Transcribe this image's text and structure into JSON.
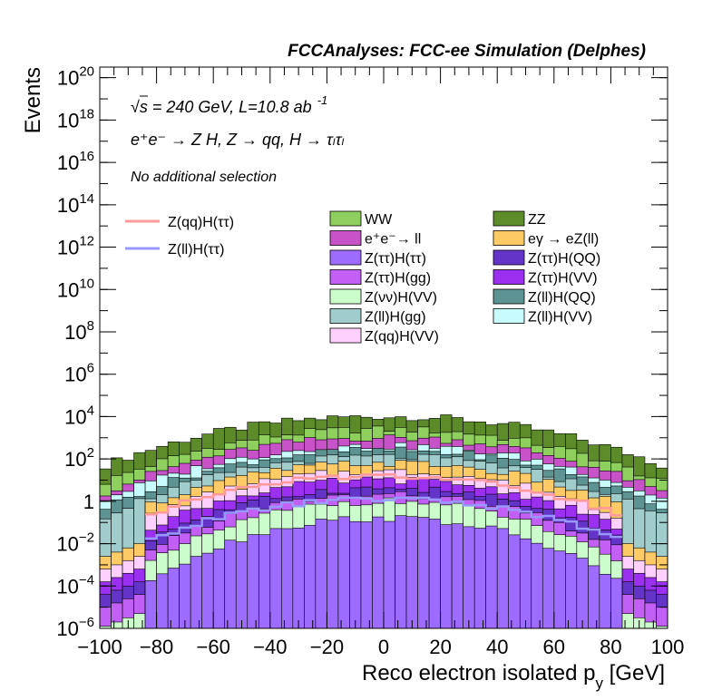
{
  "chart_data": {
    "type": "histogram-stack",
    "title": "FCCAnalyses: FCC-ee Simulation (Delphes)",
    "xlabel": "Reco electron isolated p",
    "xlabel_sub": "y",
    "xlabel_unit": "[GeV]",
    "ylabel": "Events",
    "xlim": [
      -100,
      100
    ],
    "ylim_log10": [
      -6,
      20.5
    ],
    "yscale": "log",
    "x_ticks": [
      "−100",
      "−80",
      "−60",
      "−40",
      "−20",
      "0",
      "20",
      "40",
      "60",
      "80",
      "100"
    ],
    "x_tick_values": [
      -100,
      -80,
      -60,
      -40,
      -20,
      0,
      20,
      40,
      60,
      80,
      100
    ],
    "y_ticks": [
      {
        "exp": -6,
        "base": "10",
        "sup": "−6"
      },
      {
        "exp": -4,
        "base": "10",
        "sup": "−4"
      },
      {
        "exp": -2,
        "base": "10",
        "sup": "−2"
      },
      {
        "exp": 0,
        "base": "1",
        "sup": ""
      },
      {
        "exp": 2,
        "base": "10",
        "sup": "2"
      },
      {
        "exp": 4,
        "base": "10",
        "sup": "4"
      },
      {
        "exp": 6,
        "base": "10",
        "sup": "6"
      },
      {
        "exp": 8,
        "base": "10",
        "sup": "8"
      },
      {
        "exp": 10,
        "base": "10",
        "sup": "10"
      },
      {
        "exp": 12,
        "base": "10",
        "sup": "12"
      },
      {
        "exp": 14,
        "base": "10",
        "sup": "14"
      },
      {
        "exp": 16,
        "base": "10",
        "sup": "16"
      },
      {
        "exp": 18,
        "base": "10",
        "sup": "18"
      },
      {
        "exp": 20,
        "base": "10",
        "sup": "20"
      }
    ],
    "annotations": {
      "energy": "√s = 240 GeV, L=10.8 ab",
      "energy_sup": "-1",
      "process": "e⁺e⁻ → Z H, Z → qq, H → τₗτₗ",
      "selection": "No additional selection"
    },
    "bins": {
      "start": -100,
      "stop": 100,
      "width": 4
    },
    "stack_layers": [
      {
        "name": "ZZ",
        "color": "#5d8b2a",
        "shape": "dome",
        "center_log10": 4.0,
        "edge_log10": 1.6
      },
      {
        "name": "WW",
        "color": "#8fcf5e",
        "shape": "dome",
        "center_log10": 3.4,
        "edge_log10": 0.8
      },
      {
        "name": "e⁺e⁻→ ll",
        "color": "#c852c8",
        "shape": "dome",
        "center_log10": 3.0,
        "edge_log10": 0.3
      },
      {
        "name": "Z(ll)H(VV)",
        "color": "#c8fbfb",
        "shape": "dome",
        "center_log10": 2.6,
        "edge_log10": 0.0
      },
      {
        "name": "Z(ll)H(QQ)",
        "color": "#5d9393",
        "shape": "dome",
        "center_log10": 2.4,
        "edge_log10": -0.4
      },
      {
        "name": "Z(ll)H(gg)",
        "color": "#a1cccc",
        "shape": "dome",
        "center_log10": 2.1,
        "edge_log10": -0.8
      },
      {
        "name": "eγ → eZ(ll)",
        "color": "#fdca66",
        "shape": "dome",
        "center_log10": 1.8,
        "edge_log10": -1.2
      },
      {
        "name": "Z(qq)H(VV)",
        "color": "#fdd0fd",
        "shape": "dome",
        "center_log10": 1.4,
        "edge_log10": -1.8
      },
      {
        "name": "Z(ττ)H(VV)",
        "color": "#9b30f0",
        "shape": "dome",
        "center_log10": 1.0,
        "edge_log10": -2.4
      },
      {
        "name": "Z(ττ)H(QQ)",
        "color": "#6433c8",
        "shape": "dome",
        "center_log10": 0.6,
        "edge_log10": -3.0
      },
      {
        "name": "Z(ττ)H(gg)",
        "color": "#c25ff5",
        "shape": "dome",
        "center_log10": 0.3,
        "edge_log10": -3.6
      },
      {
        "name": "Z(νν)H(VV)",
        "color": "#ccfccc",
        "shape": "dome",
        "center_log10": 0.0,
        "edge_log10": -4.5
      },
      {
        "name": "Z(ττ)H(ττ)",
        "color": "#9e6bff",
        "shape": "dome",
        "center_log10": -0.8,
        "edge_log10": -5.2
      }
    ],
    "signal_lines": [
      {
        "name": "Z(qq)H(ττ)",
        "color": "#ff9898",
        "center_log10": 1.2,
        "edge_log10": -1.6
      },
      {
        "name": "Z(ll)H(ττ)",
        "color": "#9898ff",
        "center_log10": 0.1,
        "edge_log10": -2.8
      }
    ],
    "legend": {
      "signals": [
        "Z(qq)H(ττ)",
        "Z(ll)H(ττ)"
      ],
      "col1": [
        {
          "label": "WW",
          "color": "#8fcf5e"
        },
        {
          "label": "e⁺e⁻→ ll",
          "color": "#c852c8"
        },
        {
          "label": "Z(ττ)H(ττ)",
          "color": "#9e6bff"
        },
        {
          "label": "Z(ττ)H(gg)",
          "color": "#c25ff5"
        },
        {
          "label": "Z(νν)H(VV)",
          "color": "#ccfccc"
        },
        {
          "label": "Z(ll)H(gg)",
          "color": "#a1cccc"
        },
        {
          "label": "Z(qq)H(VV)",
          "color": "#fdd0fd"
        }
      ],
      "col2": [
        {
          "label": "ZZ",
          "color": "#5d8b2a"
        },
        {
          "label": "eγ → eZ(ll)",
          "color": "#fdca66"
        },
        {
          "label": "Z(ττ)H(QQ)",
          "color": "#6433c8"
        },
        {
          "label": "Z(ττ)H(VV)",
          "color": "#9b30f0"
        },
        {
          "label": "Z(ll)H(QQ)",
          "color": "#5d9393"
        },
        {
          "label": "Z(ll)H(VV)",
          "color": "#c8fbfb"
        }
      ]
    }
  }
}
